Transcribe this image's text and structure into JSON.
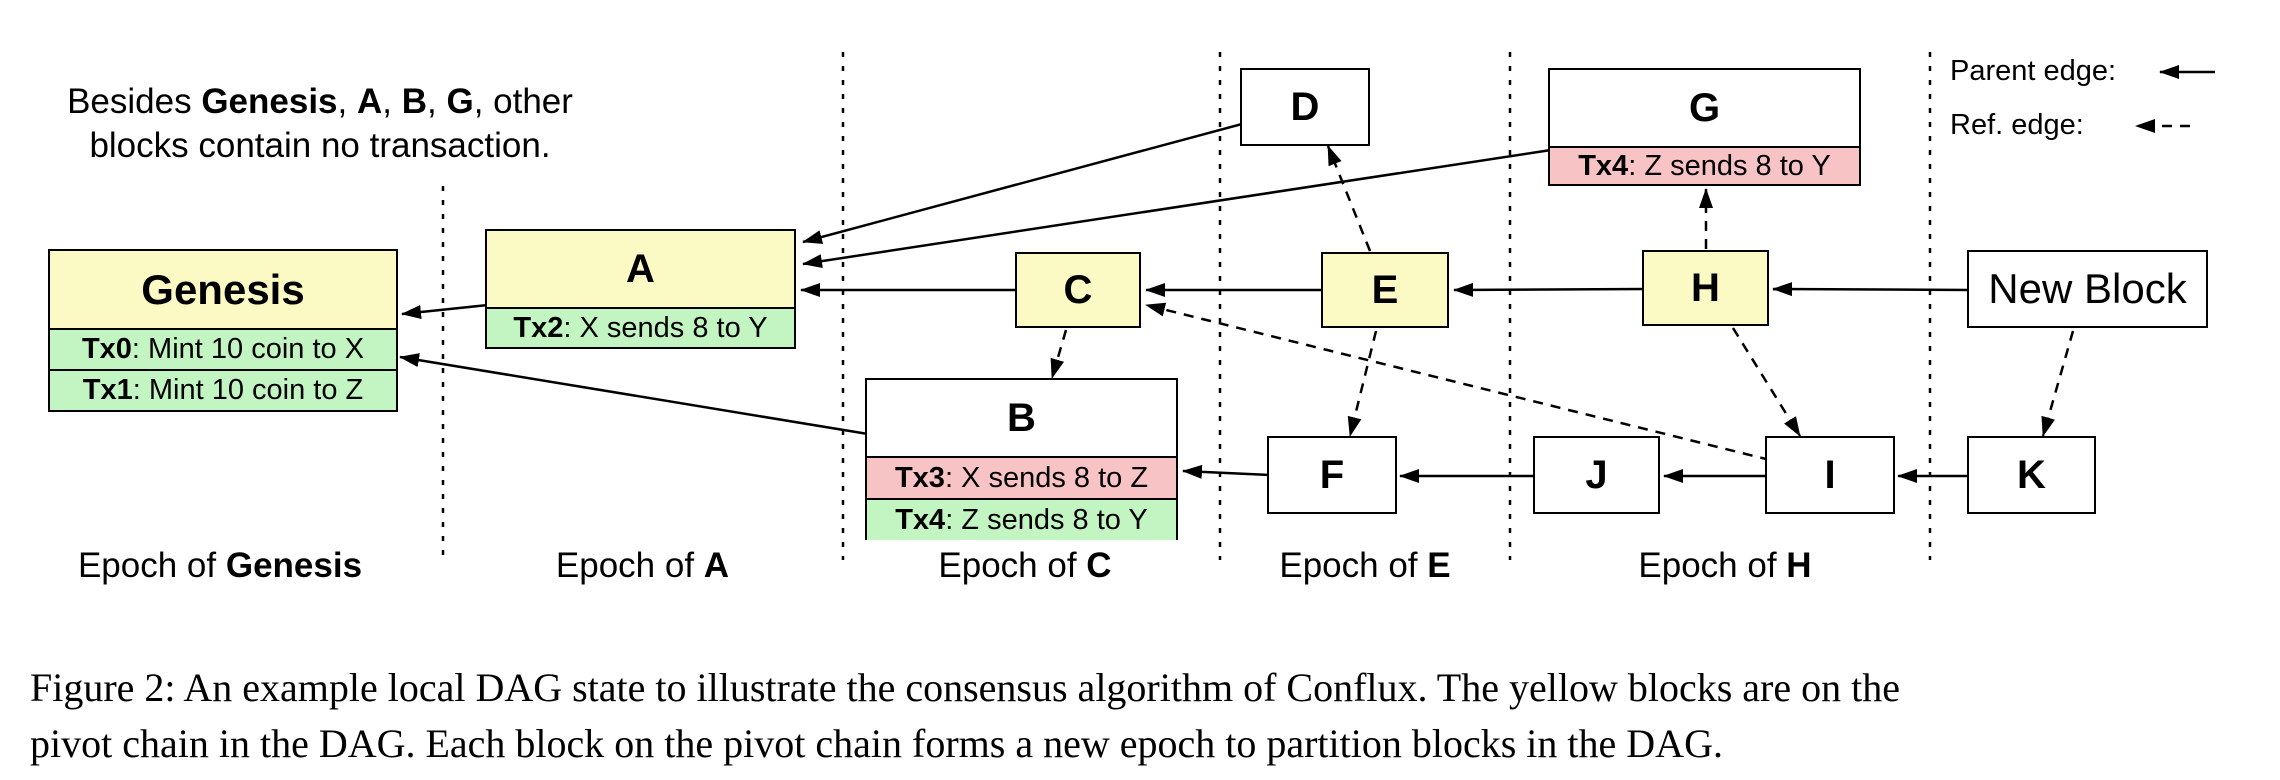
{
  "note": {
    "prefix": "Besides ",
    "genesis": "Genesis",
    "comma1": ", ",
    "a": "A",
    "comma2": ", ",
    "b": "B",
    "comma3": ", ",
    "g": "G",
    "suffix1": ", other",
    "line2": "blocks contain no transaction."
  },
  "legend": {
    "parent_label": "Parent edge:",
    "ref_label": "Ref. edge:"
  },
  "blocks": {
    "genesis": {
      "title": "Genesis",
      "tx": [
        {
          "id": "Tx0",
          "text": ": Mint 10 coin to X"
        },
        {
          "id": "Tx1",
          "text": ": Mint 10 coin to Z"
        }
      ]
    },
    "a": {
      "title": "A",
      "tx": [
        {
          "id": "Tx2",
          "text": ": X sends 8 to Y"
        }
      ]
    },
    "b": {
      "title": "B",
      "tx": [
        {
          "id": "Tx3",
          "text": ": X sends 8 to Z"
        },
        {
          "id": "Tx4",
          "text": ": Z sends 8 to Y"
        }
      ]
    },
    "c": {
      "title": "C"
    },
    "d": {
      "title": "D"
    },
    "e": {
      "title": "E"
    },
    "f": {
      "title": "F"
    },
    "g": {
      "title": "G",
      "tx": [
        {
          "id": "Tx4",
          "text": ": Z sends 8 to Y"
        }
      ]
    },
    "h": {
      "title": "H"
    },
    "i": {
      "title": "I"
    },
    "j": {
      "title": "J"
    },
    "k": {
      "title": "K"
    },
    "new": {
      "title": "New Block"
    }
  },
  "epochs": [
    {
      "prefix": "Epoch of ",
      "name": "Genesis"
    },
    {
      "prefix": "Epoch of ",
      "name": "A"
    },
    {
      "prefix": "Epoch of ",
      "name": "C"
    },
    {
      "prefix": "Epoch of ",
      "name": "E"
    },
    {
      "prefix": "Epoch of ",
      "name": "H"
    }
  ],
  "caption": {
    "line1": "Figure 2: An example local DAG state to illustrate the consensus algorithm of Conflux. The yellow blocks are on the",
    "line2": "pivot chain in the DAG. Each block on the pivot chain forms a new epoch to partition blocks in the DAG."
  },
  "colors": {
    "pivot": "#fbf9c4",
    "tx_green": "#c2f5c2",
    "tx_red": "#f8c3c4"
  }
}
